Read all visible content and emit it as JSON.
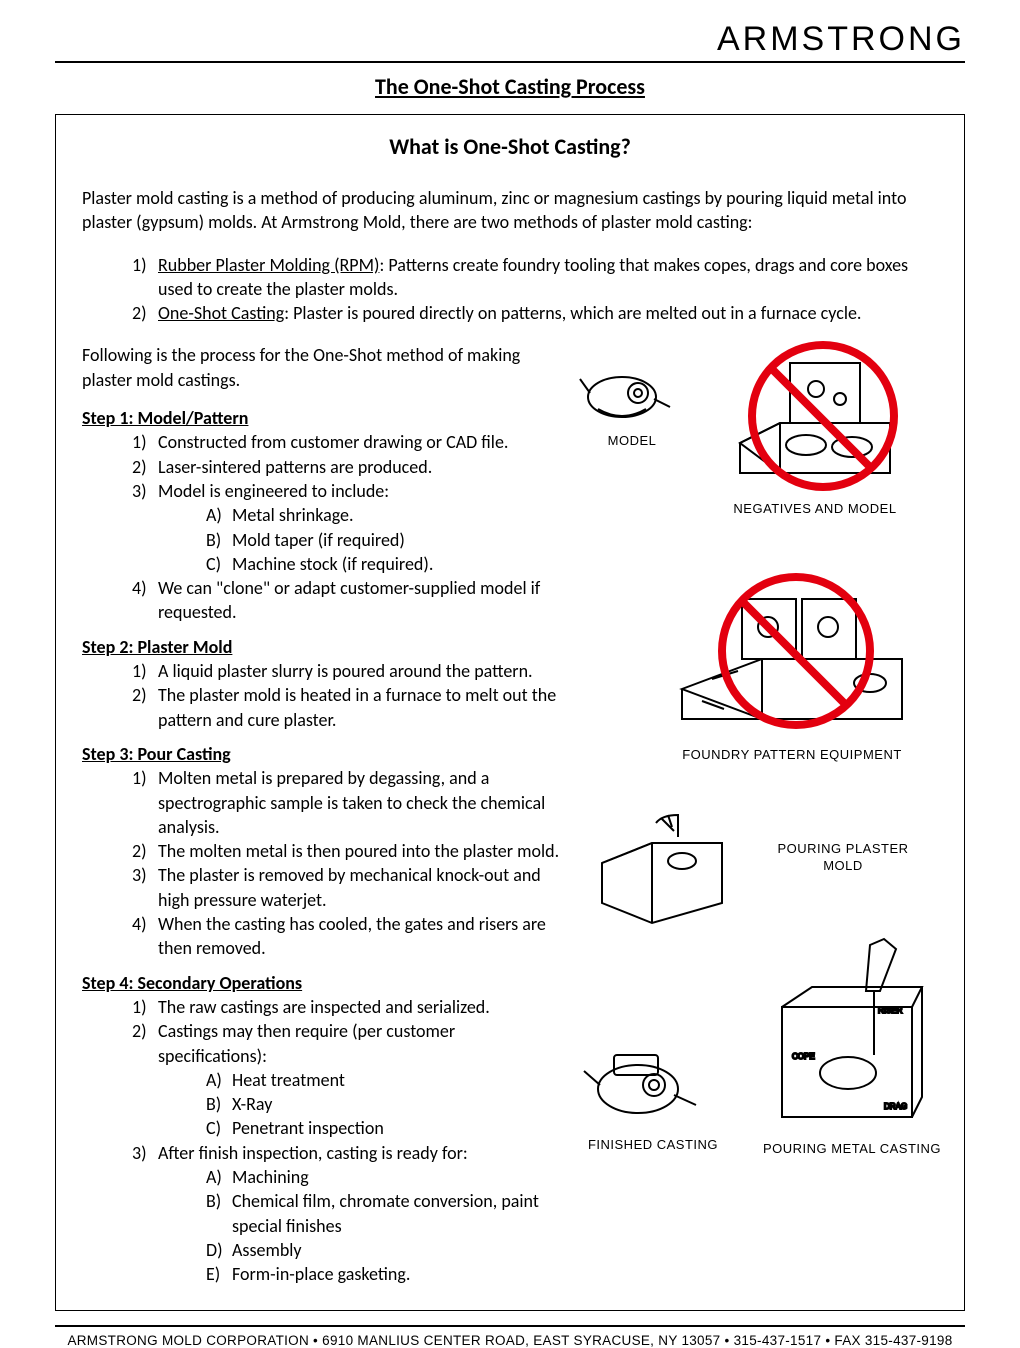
{
  "brand": "ARMSTRONG",
  "title": "The One-Shot Casting Process",
  "section_title": "What is One-Shot Casting?",
  "intro": "Plaster mold casting is a method of producing aluminum, zinc or magnesium castings by pouring liquid metal into plaster (gypsum) molds. At Armstrong Mold, there are two methods of plaster mold casting:",
  "methods": [
    {
      "num": "1)",
      "label": "Rubber Plaster Molding (RPM)",
      "rest": ": Patterns create foundry tooling that makes copes, drags and core boxes used to create the plaster molds."
    },
    {
      "num": "2)",
      "label": "One-Shot Casting",
      "rest": ": Plaster is poured directly on patterns, which are melted out in a furnace cycle."
    }
  ],
  "following": "Following is the process for the One-Shot method of making plaster mold castings.",
  "steps": [
    {
      "name": "Step 1:  Model/Pattern",
      "items": [
        {
          "n": "1)",
          "t": "Constructed from customer drawing or CAD file."
        },
        {
          "n": "2)",
          "t": "Laser-sintered patterns are produced."
        },
        {
          "n": "3)",
          "t": "Model is engineered to include:",
          "sub": [
            {
              "l": "A)",
              "t": "Metal shrinkage."
            },
            {
              "l": "B)",
              "t": "Mold taper (if required)"
            },
            {
              "l": "C)",
              "t": "Machine stock (if required)."
            }
          ]
        },
        {
          "n": "4)",
          "t": "We can \"clone\" or adapt customer-supplied model if requested."
        }
      ]
    },
    {
      "name": "Step 2:  Plaster Mold",
      "items": [
        {
          "n": "1)",
          "t": "A liquid plaster slurry is poured around the pattern."
        },
        {
          "n": "2)",
          "t": "The plaster mold is heated in a furnace to melt out the pattern and cure plaster."
        }
      ]
    },
    {
      "name": "Step 3:  Pour Casting",
      "items": [
        {
          "n": "1)",
          "t": "Molten metal is prepared by degassing, and a spectrographic sample is taken to check the chemical analysis."
        },
        {
          "n": "2)",
          "t": "The molten metal is then poured into the plaster mold."
        },
        {
          "n": "3)",
          "t": "The plaster is removed by mechanical knock-out and high pressure waterjet."
        },
        {
          "n": "4)",
          "t": "When the casting has cooled, the gates and risers are then removed."
        }
      ]
    },
    {
      "name": "Step 4:  Secondary Operations",
      "items": [
        {
          "n": "1)",
          "t": "The raw castings are inspected and serialized."
        },
        {
          "n": "2)",
          "t": "Castings may then require (per customer specifications):",
          "sub": [
            {
              "l": "A)",
              "t": "Heat treatment"
            },
            {
              "l": "B)",
              "t": "X-Ray"
            },
            {
              "l": "C)",
              "t": "Penetrant inspection"
            }
          ]
        },
        {
          "n": "3)",
          "t": "After finish inspection, casting is ready for:",
          "sub": [
            {
              "l": "A)",
              "t": "Machining"
            },
            {
              "l": "B)",
              "t": "Chemical film, chromate conversion, paint special finishes"
            },
            {
              "l": "D)",
              "t": "Assembly"
            },
            {
              "l": "E)",
              "t": "Form-in-place gasketing."
            }
          ]
        }
      ]
    }
  ],
  "figures": {
    "model": "MODEL",
    "neg": "NEGATIVES AND MODEL",
    "foundry": "FOUNDRY PATTERN EQUIPMENT",
    "pour_plaster": "POURING PLASTER MOLD",
    "pour_metal": "POURING METAL CASTING",
    "finished": "FINISHED CASTING"
  },
  "footer": "ARMSTRONG MOLD CORPORATION • 6910 MANLIUS CENTER ROAD, EAST SYRACUSE, NY 13057 • 315-437-1517 • FAX 315-437-9198",
  "colors": {
    "prohibit": "#e3000f",
    "stroke": "#000"
  }
}
